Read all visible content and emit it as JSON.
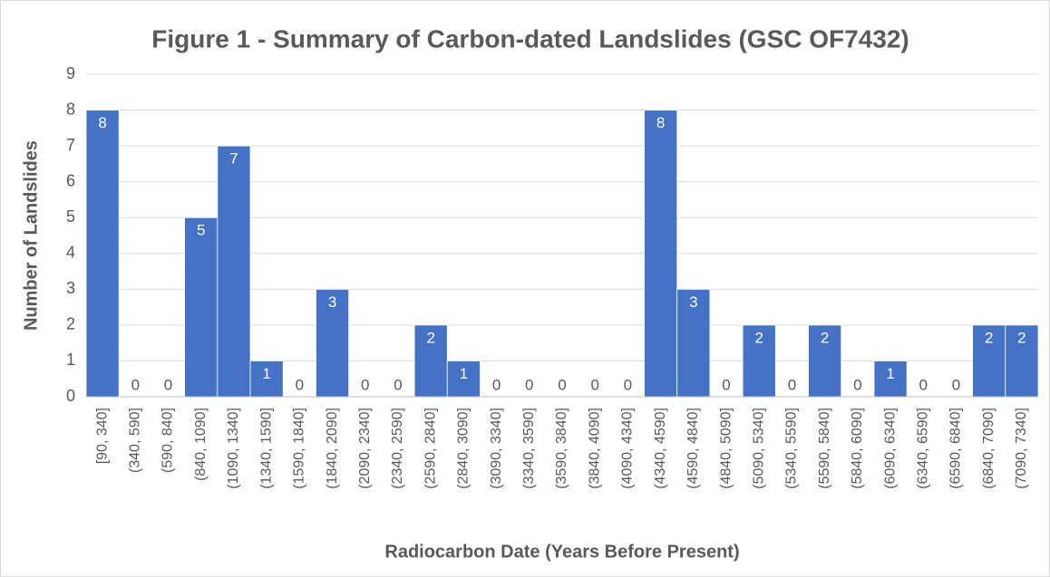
{
  "chart_data": {
    "type": "bar",
    "title": "Figure 1 - Summary of Carbon-dated Landslides (GSC OF7432)",
    "x_label": "Radiocarbon Date (Years Before Present)",
    "y_label": "Number of Landslides",
    "categories": [
      "[90, 340]",
      "(340, 590]",
      "(590, 840]",
      "(840, 1090]",
      "(1090, 1340]",
      "(1340, 1590]",
      "(1590, 1840]",
      "(1840, 2090]",
      "(2090, 2340]",
      "(2340, 2590]",
      "(2590, 2840]",
      "(2840, 3090]",
      "(3090, 3340]",
      "(3340, 3590]",
      "(3590, 3840]",
      "(3840, 4090]",
      "(4090, 4340]",
      "(4340, 4590]",
      "(4590, 4840]",
      "(4840, 5090]",
      "(5090, 5340]",
      "(5340, 5590]",
      "(5590, 5840]",
      "(5840, 6090]",
      "(6090, 6340]",
      "(6340, 6590]",
      "(6590, 6840]",
      "(6840, 7090]",
      "(7090, 7340]"
    ],
    "values": [
      8,
      0,
      0,
      5,
      7,
      1,
      0,
      3,
      0,
      0,
      2,
      1,
      0,
      0,
      0,
      0,
      0,
      8,
      3,
      0,
      2,
      0,
      2,
      0,
      1,
      0,
      0,
      2,
      2
    ],
    "color": "#4472c4",
    "ylim": [
      0,
      9
    ],
    "yticks": [
      0,
      1,
      2,
      3,
      4,
      5,
      6,
      7,
      8,
      9
    ],
    "grid": true
  }
}
